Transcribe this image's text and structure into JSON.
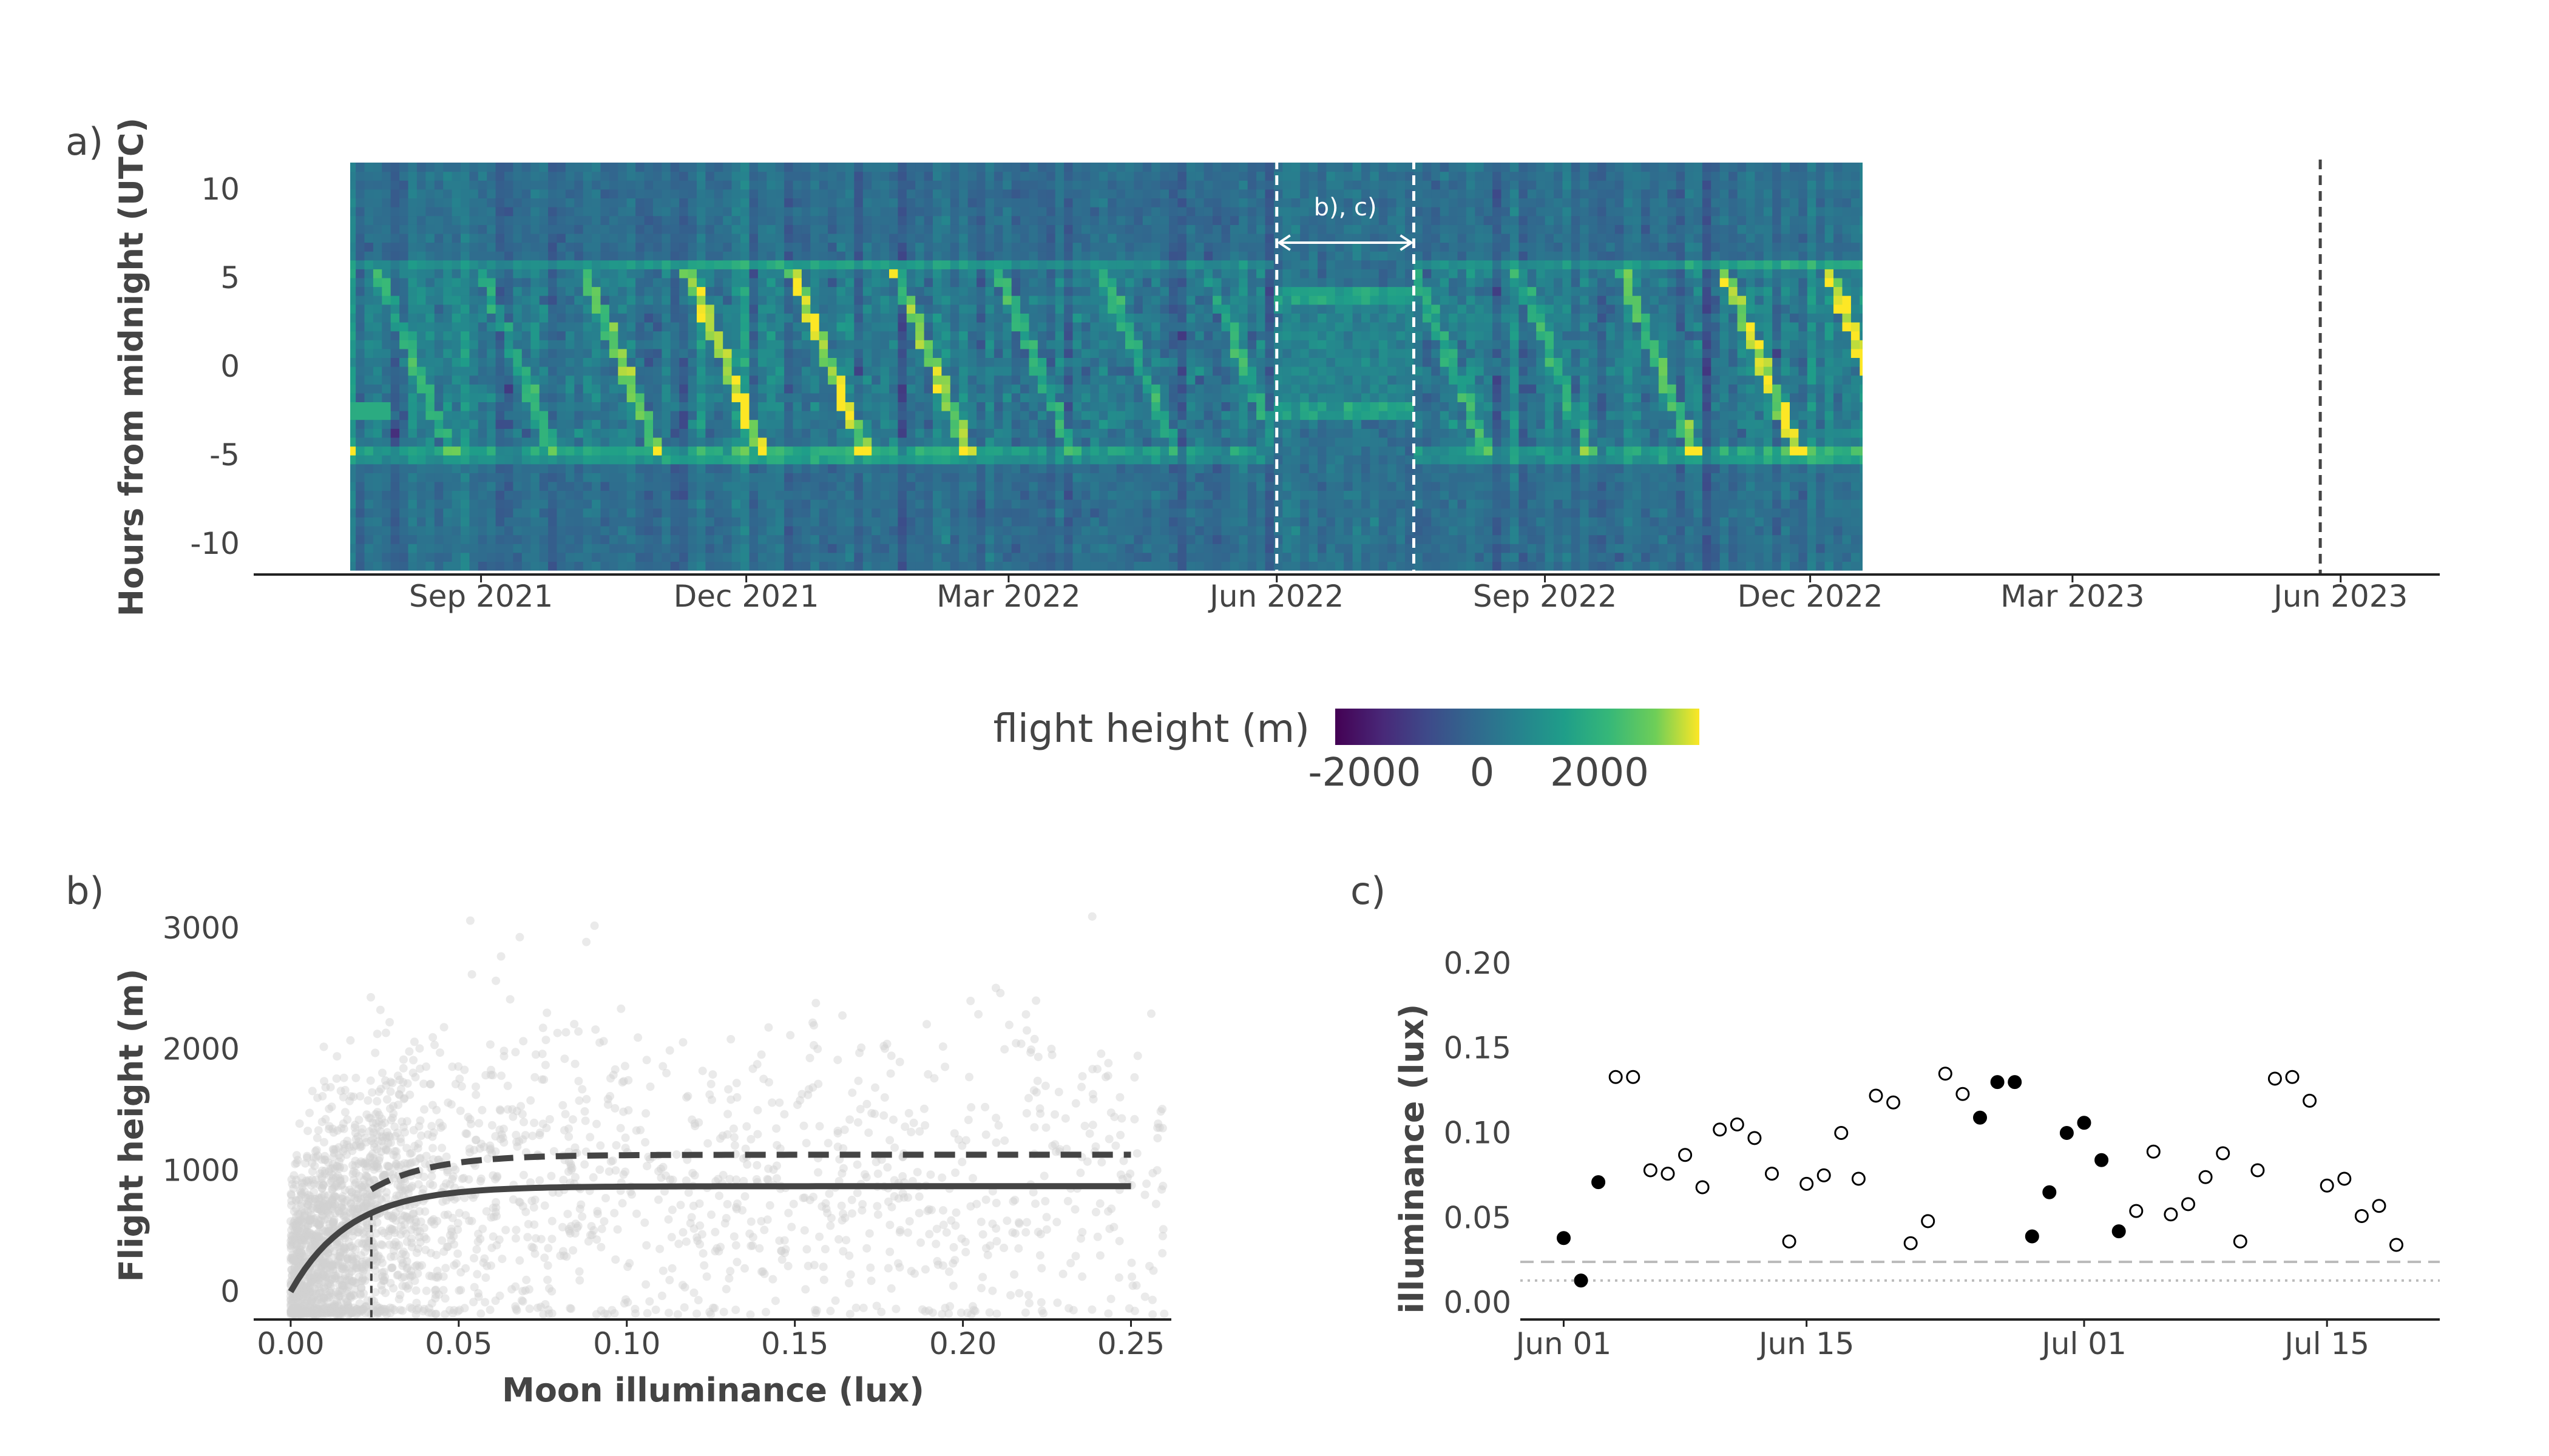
{
  "panel_labels": {
    "a": "a)",
    "b": "b)",
    "c": "c)"
  },
  "colorbar": {
    "label": "flight height (m)",
    "ticks": [
      "-2000",
      "0",
      "2000"
    ],
    "tick_values": [
      -2000,
      0,
      2000
    ],
    "range": [
      -2500,
      3700
    ],
    "colormap": "viridis"
  },
  "chart_data": [
    {
      "panel": "a",
      "type": "heatmap",
      "ylabel": "Hours from midnight (UTC)",
      "xlabel": "",
      "x_tick_labels": [
        "Sep 2021",
        "Dec 2021",
        "Mar 2022",
        "Jun 2022",
        "Sep 2022",
        "Dec 2022",
        "Mar 2023",
        "Jun 2023"
      ],
      "x_tick_dates": [
        "2021-09-01",
        "2021-12-01",
        "2022-03-01",
        "2022-06-01",
        "2022-09-01",
        "2022-12-01",
        "2023-03-01",
        "2023-06-01"
      ],
      "y_tick_labels": [
        "10",
        "5",
        "0",
        "-5",
        "-10"
      ],
      "y_tick_values": [
        10,
        5,
        0,
        -5,
        -10
      ],
      "xlim": [
        "2021-06-15",
        "2023-07-05"
      ],
      "ylim": [
        -11.5,
        11.5
      ],
      "data_extent": [
        "2021-07-17",
        "2022-12-21"
      ],
      "annotation": {
        "text": "b), c)",
        "start": "2022-06-01",
        "end": "2022-07-18"
      },
      "vertical_lines": [
        {
          "date": "2022-06-01",
          "color": "#ffffff",
          "style": "dashed"
        },
        {
          "date": "2022-07-18",
          "color": "#ffffff",
          "style": "dashed"
        },
        {
          "date": "2023-05-25",
          "color": "#444444",
          "style": "dashed"
        }
      ],
      "description_values": {
        "background_height_m": 0,
        "activity_band_height_m": 1500,
        "peak_height_m": 3500
      }
    },
    {
      "panel": "b",
      "type": "scatter",
      "xlabel": "Moon illuminance (lux)",
      "ylabel": "Flight height (m)",
      "x_ticks": [
        0.0,
        0.05,
        0.1,
        0.15,
        0.2,
        0.25
      ],
      "x_tick_labels": [
        "0.00",
        "0.05",
        "0.10",
        "0.15",
        "0.20",
        "0.25"
      ],
      "y_ticks": [
        0,
        1000,
        2000,
        3000
      ],
      "y_tick_labels": [
        "0",
        "1000",
        "2000",
        "3000"
      ],
      "xlim": [
        -0.011,
        0.262
      ],
      "ylim": [
        -230,
        3150
      ],
      "scatter_color": "#d0d0d0",
      "curves": [
        {
          "style": "solid",
          "color": "#444444",
          "asymptote": 870,
          "rate": 0.0175,
          "x_end": 0.25
        },
        {
          "style": "dashed",
          "color": "#444444",
          "asymptote": 1130,
          "rate": 0.0175,
          "x_start": 0.024,
          "x_end": 0.25
        }
      ],
      "vertical_line": {
        "x": 0.024,
        "style": "dashed",
        "color": "#444444"
      }
    },
    {
      "panel": "c",
      "type": "scatter",
      "xlabel": "",
      "ylabel": "illuminance (lux)",
      "x_tick_labels": [
        "Jun 01",
        "Jun 15",
        "Jul 01",
        "Jul 15"
      ],
      "x_tick_days": [
        0,
        14,
        30,
        44
      ],
      "y_ticks": [
        0.0,
        0.05,
        0.1,
        0.15,
        0.2
      ],
      "y_tick_labels": [
        "0.00",
        "0.05",
        "0.10",
        "0.15",
        "0.20"
      ],
      "xlim": [
        -2.5,
        50.5
      ],
      "ylim": [
        -0.01,
        0.21
      ],
      "hlines": [
        {
          "y": 0.024,
          "style": "dashed",
          "color": "#bbbbbb"
        },
        {
          "y": 0.013,
          "style": "dotted",
          "color": "#bbbbbb"
        }
      ],
      "points": [
        {
          "day": 0,
          "value": 0.038,
          "filled": true
        },
        {
          "day": 1,
          "value": 0.013,
          "filled": true
        },
        {
          "day": 2,
          "value": 0.071,
          "filled": true
        },
        {
          "day": 3,
          "value": 0.133,
          "filled": false
        },
        {
          "day": 4,
          "value": 0.133,
          "filled": false
        },
        {
          "day": 5,
          "value": 0.078,
          "filled": false
        },
        {
          "day": 6,
          "value": 0.076,
          "filled": false
        },
        {
          "day": 7,
          "value": 0.087,
          "filled": false
        },
        {
          "day": 8,
          "value": 0.068,
          "filled": false
        },
        {
          "day": 9,
          "value": 0.102,
          "filled": false
        },
        {
          "day": 10,
          "value": 0.105,
          "filled": false
        },
        {
          "day": 11,
          "value": 0.097,
          "filled": false
        },
        {
          "day": 12,
          "value": 0.076,
          "filled": false
        },
        {
          "day": 13,
          "value": 0.036,
          "filled": false
        },
        {
          "day": 14,
          "value": 0.07,
          "filled": false
        },
        {
          "day": 15,
          "value": 0.075,
          "filled": false
        },
        {
          "day": 16,
          "value": 0.1,
          "filled": false
        },
        {
          "day": 17,
          "value": 0.073,
          "filled": false
        },
        {
          "day": 18,
          "value": 0.122,
          "filled": false
        },
        {
          "day": 19,
          "value": 0.118,
          "filled": false
        },
        {
          "day": 20,
          "value": 0.035,
          "filled": false
        },
        {
          "day": 21,
          "value": 0.048,
          "filled": false
        },
        {
          "day": 22,
          "value": 0.135,
          "filled": false
        },
        {
          "day": 23,
          "value": 0.123,
          "filled": false
        },
        {
          "day": 24,
          "value": 0.109,
          "filled": true
        },
        {
          "day": 25,
          "value": 0.13,
          "filled": true
        },
        {
          "day": 26,
          "value": 0.13,
          "filled": true
        },
        {
          "day": 27,
          "value": 0.039,
          "filled": true
        },
        {
          "day": 28,
          "value": 0.065,
          "filled": true
        },
        {
          "day": 29,
          "value": 0.1,
          "filled": true
        },
        {
          "day": 30,
          "value": 0.106,
          "filled": true
        },
        {
          "day": 31,
          "value": 0.084,
          "filled": true
        },
        {
          "day": 32,
          "value": 0.042,
          "filled": true
        },
        {
          "day": 33,
          "value": 0.054,
          "filled": false
        },
        {
          "day": 34,
          "value": 0.089,
          "filled": false
        },
        {
          "day": 35,
          "value": 0.052,
          "filled": false
        },
        {
          "day": 36,
          "value": 0.058,
          "filled": false
        },
        {
          "day": 37,
          "value": 0.074,
          "filled": false
        },
        {
          "day": 38,
          "value": 0.088,
          "filled": false
        },
        {
          "day": 39,
          "value": 0.036,
          "filled": false
        },
        {
          "day": 40,
          "value": 0.078,
          "filled": false
        },
        {
          "day": 41,
          "value": 0.132,
          "filled": false
        },
        {
          "day": 42,
          "value": 0.133,
          "filled": false
        },
        {
          "day": 43,
          "value": 0.119,
          "filled": false
        },
        {
          "day": 44,
          "value": 0.069,
          "filled": false
        },
        {
          "day": 45,
          "value": 0.073,
          "filled": false
        },
        {
          "day": 46,
          "value": 0.051,
          "filled": false
        },
        {
          "day": 47,
          "value": 0.057,
          "filled": false
        },
        {
          "day": 48,
          "value": 0.034,
          "filled": false
        }
      ]
    }
  ]
}
